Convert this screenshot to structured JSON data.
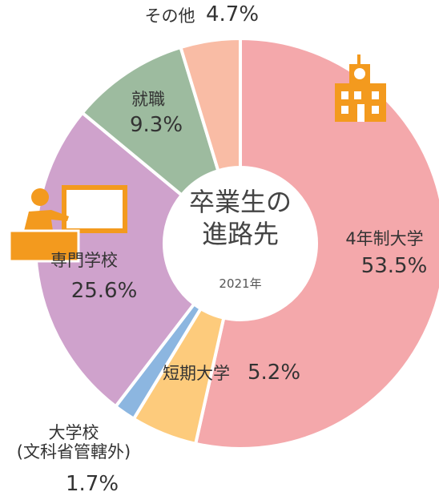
{
  "chart_data": {
    "type": "donut",
    "title": "卒業生の\n進路先",
    "subtitle": "2021年",
    "categories": [
      "4年制大学",
      "短期大学",
      "大学校\n(文科省管轄外)",
      "専門学校",
      "就職",
      "その他"
    ],
    "values": [
      53.5,
      5.2,
      1.7,
      25.6,
      9.3,
      4.7
    ],
    "value_labels": [
      "53.5%",
      "5.2%",
      "1.7%",
      "25.6%",
      "9.3%",
      "4.7%"
    ],
    "colors": [
      "#f4a8ab",
      "#fdcb7c",
      "#8cb6e0",
      "#cfa2cc",
      "#9dbb9f",
      "#f9bca5"
    ]
  }
}
